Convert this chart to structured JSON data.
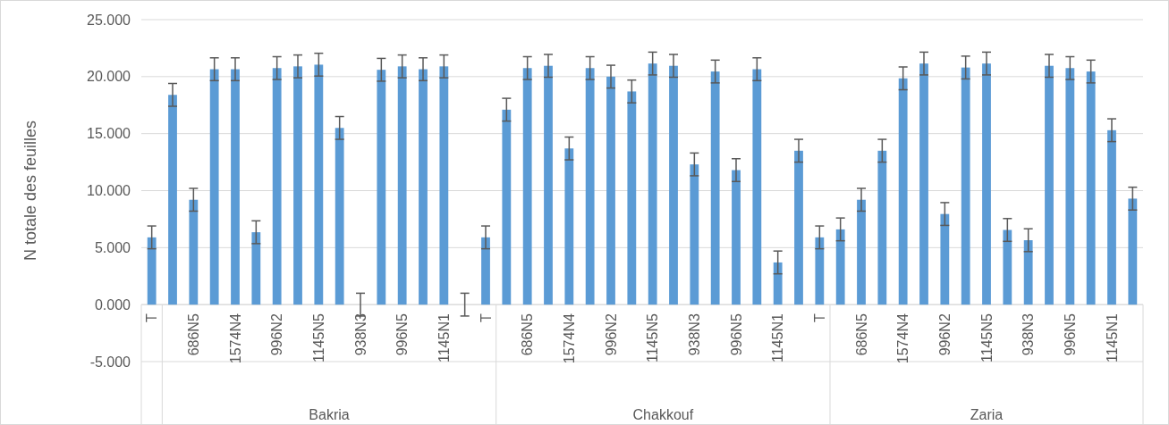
{
  "chart_data": {
    "type": "bar",
    "ylabel": "N totale des feuilles",
    "categories": [
      "T",
      null,
      "686N5",
      null,
      "1574N4",
      null,
      "996N2",
      null,
      "1145N5",
      null,
      "938N3",
      null,
      "996N5",
      null,
      "1145N1",
      null,
      "T",
      null,
      "686N5",
      null,
      "1574N4",
      null,
      "996N2",
      null,
      "1145N5",
      null,
      "938N3",
      null,
      "996N5",
      null,
      "1145N1",
      null,
      "T",
      null,
      "686N5",
      null,
      "1574N4",
      null,
      "996N2",
      null,
      "1145N5",
      null,
      "938N3",
      null,
      "996N5",
      null,
      "1145N1",
      null
    ],
    "series": [
      {
        "color": "#5b9bd5",
        "values": [
          5.9,
          18.4,
          9.2,
          20.65,
          20.65,
          6.35,
          20.75,
          20.9,
          21.05,
          15.5,
          0,
          20.6,
          20.9,
          20.65,
          20.9,
          0,
          5.9,
          17.1,
          20.75,
          20.95,
          13.7,
          20.75,
          20.0,
          18.7,
          21.15,
          20.95,
          12.3,
          20.45,
          11.8,
          20.65,
          3.7,
          13.5,
          5.9,
          6.6,
          9.2,
          13.5,
          19.85,
          21.15,
          7.95,
          20.8,
          21.15,
          6.55,
          5.65,
          20.95,
          20.75,
          20.45,
          15.3,
          9.3
        ],
        "errors": [
          1,
          1,
          1,
          1,
          1,
          1,
          1,
          1,
          1,
          1,
          1,
          1,
          1,
          1,
          1,
          1,
          1,
          1,
          1,
          1,
          1,
          1,
          1,
          1,
          1,
          1,
          1,
          1,
          1,
          1,
          1,
          1,
          1,
          1,
          1,
          1,
          1,
          1,
          1,
          1,
          1,
          1,
          1,
          1,
          1,
          1,
          1,
          1
        ]
      }
    ],
    "ylim": [
      -5,
      25
    ],
    "yticks": [
      {
        "value": -5,
        "label": "-5.000"
      },
      {
        "value": 0,
        "label": "0.000"
      },
      {
        "value": 5,
        "label": "5.000"
      },
      {
        "value": 10,
        "label": "10.000"
      },
      {
        "value": 15,
        "label": "15.000"
      },
      {
        "value": 20,
        "label": "20.000"
      },
      {
        "value": 25,
        "label": "25.000"
      }
    ],
    "grid": "y",
    "annotations": [
      "Bakria",
      "Chakkouf",
      "Zaria"
    ]
  }
}
